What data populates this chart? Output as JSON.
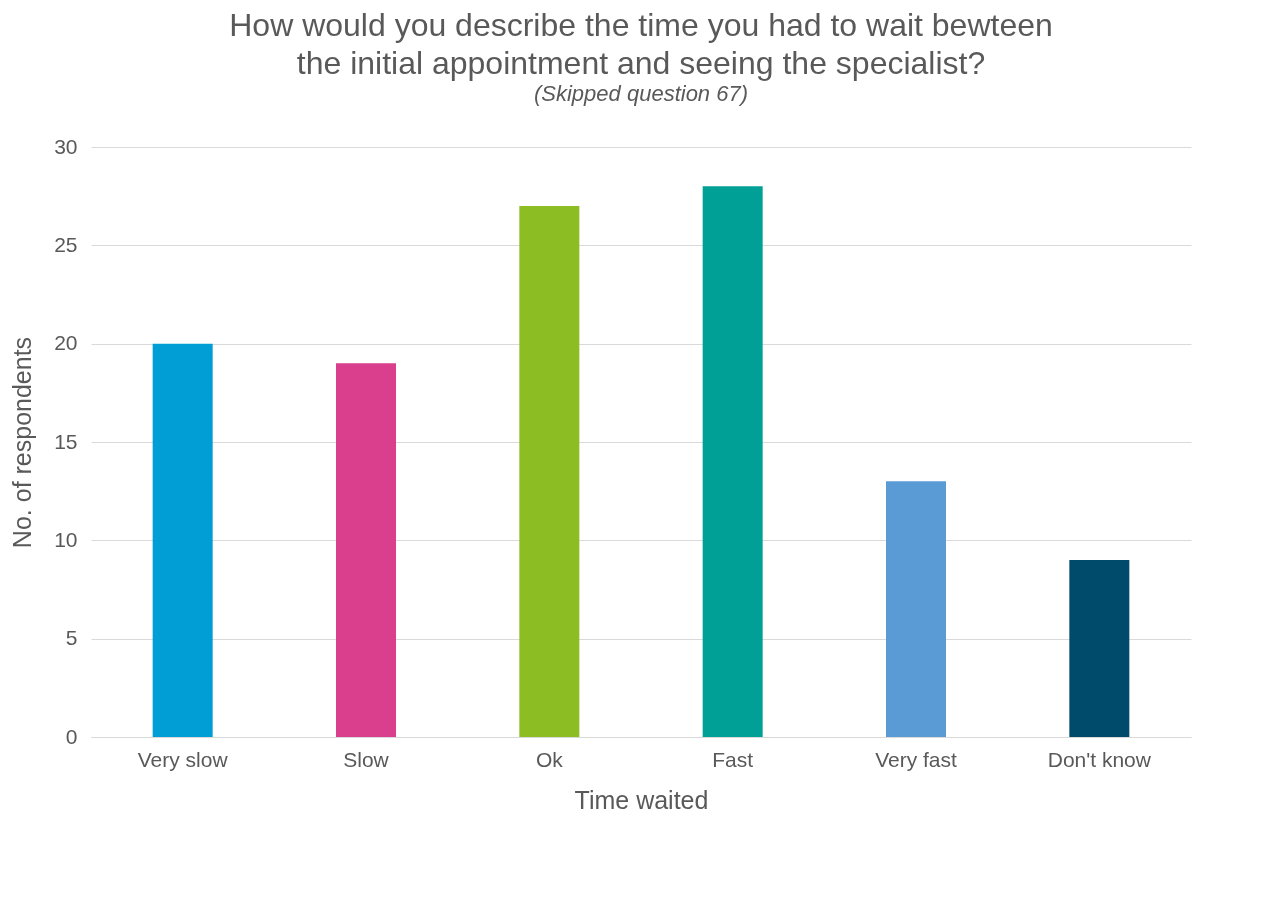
{
  "chart_data": {
    "type": "bar",
    "title": "How would you describe the time you had to wait bewteen\nthe initial appointment and seeing the specialist?",
    "subtitle": "(Skipped question 67)",
    "xlabel": "Time waited",
    "ylabel": "No. of respondents",
    "categories": [
      "Very slow",
      "Slow",
      "Ok",
      "Fast",
      "Very fast",
      "Don't know"
    ],
    "values": [
      20,
      19,
      27,
      28,
      13,
      9
    ],
    "colors": [
      "#009ed4",
      "#da3f8e",
      "#8cbd23",
      "#00a097",
      "#5b9bd5",
      "#004b6b"
    ],
    "ylim": [
      0,
      30
    ],
    "yticks": [
      0,
      5,
      10,
      15,
      20,
      25,
      30
    ],
    "grid": "y",
    "legend": false
  }
}
